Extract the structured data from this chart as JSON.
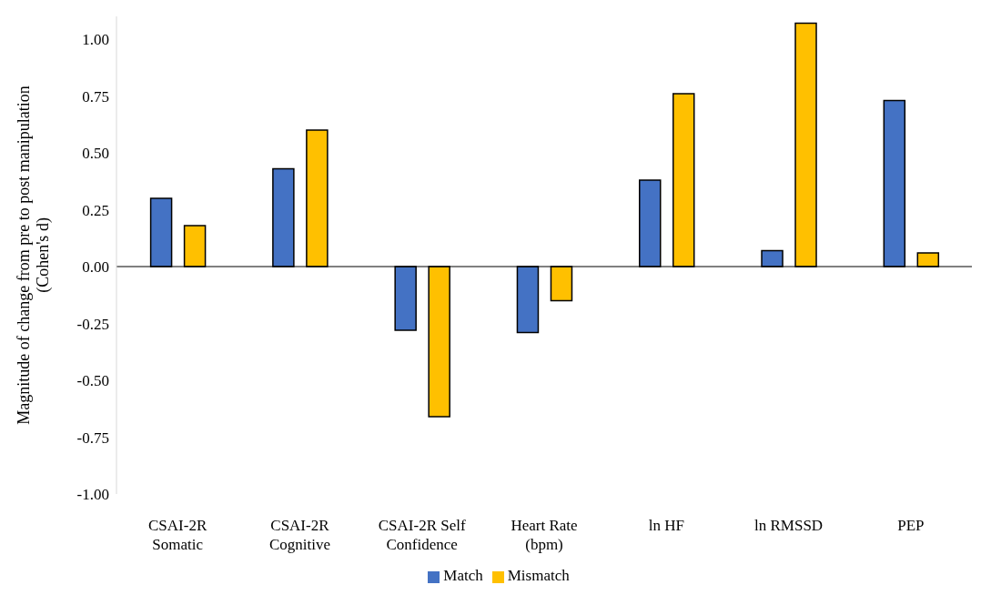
{
  "chart_data": {
    "type": "bar",
    "ylabel": "Magnitude of change from pre to post manipulation (Cohen's d)",
    "categories": [
      "CSAI-2R Somatic",
      "CSAI-2R Cognitive",
      "CSAI-2R Self Confidence",
      "Heart Rate (bpm)",
      "ln HF",
      "ln RMSSD",
      "PEP"
    ],
    "series": [
      {
        "name": "Match",
        "color": "#4472c4",
        "values": [
          0.3,
          0.43,
          -0.28,
          -0.29,
          0.38,
          0.07,
          0.73
        ]
      },
      {
        "name": "Mismatch",
        "color": "#ffc000",
        "values": [
          0.18,
          0.6,
          -0.66,
          -0.15,
          0.76,
          1.07,
          0.06
        ]
      }
    ],
    "ylim": [
      -1,
      1.1
    ],
    "yticks": [
      {
        "value": -1,
        "label": "-1.00"
      },
      {
        "value": -0.75,
        "label": "-0.75"
      },
      {
        "value": -0.5,
        "label": "-0.50"
      },
      {
        "value": -0.25,
        "label": "-0.25"
      },
      {
        "value": 0,
        "label": "0.00"
      },
      {
        "value": 0.25,
        "label": "0.25"
      },
      {
        "value": 0.5,
        "label": "0.50"
      },
      {
        "value": 0.75,
        "label": "0.75"
      },
      {
        "value": 1,
        "label": "1.00"
      }
    ],
    "ref_lines": [
      {
        "axis": "y",
        "value": 0,
        "color": "#000000"
      }
    ],
    "legend": "bottom"
  }
}
